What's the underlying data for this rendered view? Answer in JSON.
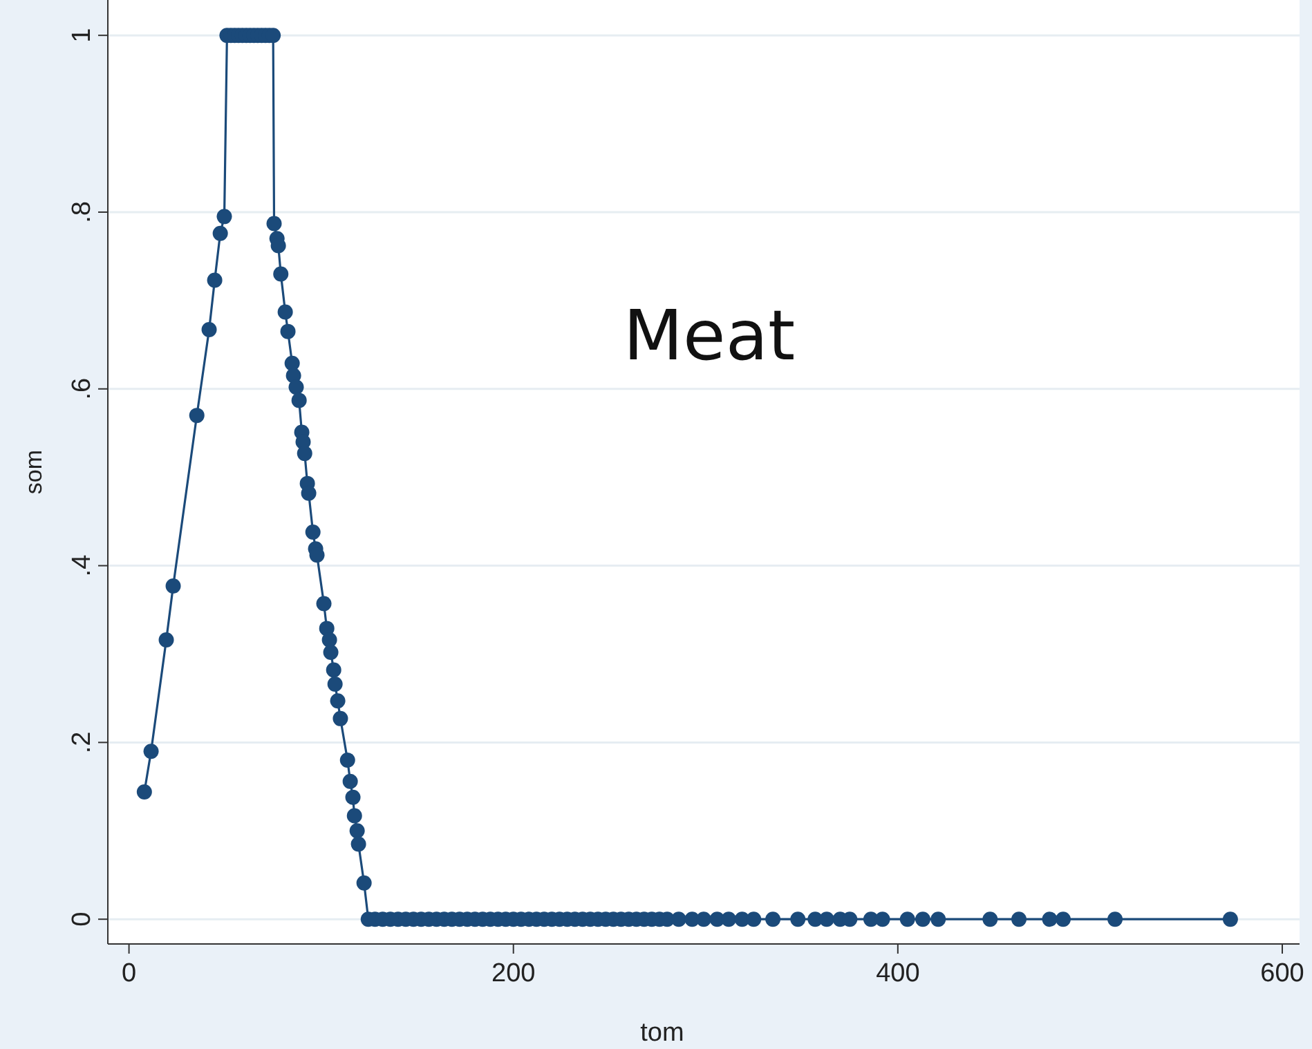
{
  "chart_data": {
    "type": "line",
    "xlabel": "tom",
    "ylabel": "som",
    "annotations": [
      "Meat"
    ],
    "marker": "circle",
    "grid": "y",
    "xlim": [
      -11,
      609
    ],
    "ylim": [
      -0.028,
      1.04
    ],
    "xticks": [
      0,
      200,
      400,
      600
    ],
    "yticks": [
      {
        "value": 0,
        "label": "0"
      },
      {
        "value": 0.2,
        "label": ".2"
      },
      {
        "value": 0.4,
        "label": ".4"
      },
      {
        "value": 0.6,
        "label": ".6"
      },
      {
        "value": 0.8,
        "label": ".8"
      },
      {
        "value": 1,
        "label": "1"
      }
    ],
    "series": [
      {
        "color": "#1b4a7a",
        "x": [
          8,
          11.5,
          19.4,
          23,
          35.3,
          41.7,
          44.6,
          47.5,
          49.6,
          51,
          53,
          55,
          57,
          59,
          61,
          63,
          65,
          67,
          69,
          71,
          73,
          75,
          75.5,
          77,
          77.7,
          79,
          81.3,
          82.7,
          84.9,
          85.6,
          87,
          88.5,
          89.9,
          90.6,
          91.4,
          92.8,
          93.5,
          95.7,
          97.1,
          97.8,
          101.4,
          102.9,
          104.3,
          105,
          106.5,
          107.2,
          108.6,
          110,
          113.7,
          115.1,
          116.5,
          117.3,
          118.7,
          119.4,
          122.3,
          124.5,
          128,
          132,
          136,
          140,
          144,
          148,
          152,
          156,
          160,
          164,
          168,
          172,
          176,
          180,
          184,
          188,
          192,
          196,
          200,
          204,
          208,
          212,
          216,
          220,
          224,
          228,
          232,
          236,
          240,
          244,
          248,
          252,
          256,
          260,
          264,
          268,
          272,
          276,
          280,
          286,
          293,
          299,
          306,
          312,
          319,
          325,
          335,
          348,
          357,
          363,
          370,
          375,
          386,
          392,
          405,
          413,
          421,
          448,
          463,
          479,
          486,
          513,
          573
        ],
        "values": [
          0.144,
          0.19,
          0.316,
          0.377,
          0.57,
          0.667,
          0.723,
          0.776,
          0.795,
          1,
          1,
          1,
          1,
          1,
          1,
          1,
          1,
          1,
          1,
          1,
          1,
          1,
          0.787,
          0.77,
          0.762,
          0.73,
          0.687,
          0.665,
          0.629,
          0.615,
          0.602,
          0.587,
          0.551,
          0.54,
          0.527,
          0.493,
          0.482,
          0.438,
          0.419,
          0.412,
          0.357,
          0.329,
          0.316,
          0.302,
          0.282,
          0.266,
          0.247,
          0.227,
          0.18,
          0.156,
          0.138,
          0.117,
          0.1,
          0.085,
          0.041,
          0,
          0,
          0,
          0,
          0,
          0,
          0,
          0,
          0,
          0,
          0,
          0,
          0,
          0,
          0,
          0,
          0,
          0,
          0,
          0,
          0,
          0,
          0,
          0,
          0,
          0,
          0,
          0,
          0,
          0,
          0,
          0,
          0,
          0,
          0,
          0,
          0,
          0,
          0,
          0,
          0,
          0,
          0,
          0,
          0,
          0,
          0,
          0,
          0,
          0,
          0,
          0,
          0,
          0,
          0,
          0,
          0,
          0,
          0,
          0,
          0,
          0,
          0,
          0
        ]
      }
    ]
  }
}
